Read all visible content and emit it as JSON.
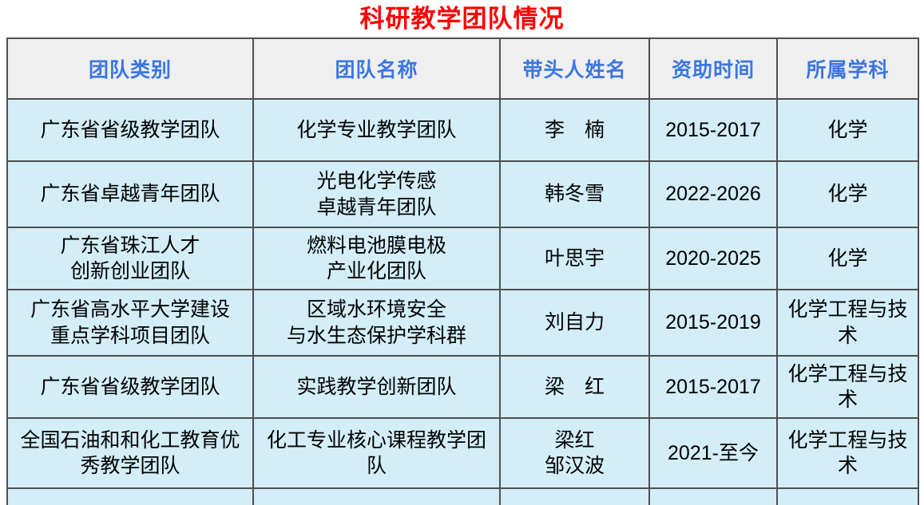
{
  "page": {
    "title": "科研教学团队情况"
  },
  "colors": {
    "title": "#ff0000",
    "header_text": "#3b76e3",
    "header_bg": "#efefef",
    "cell_bg": "#d3eef8",
    "border": "#4f4f4f",
    "body_text": "#000000"
  },
  "table": {
    "headers": [
      "团队类别",
      "团队名称",
      "带头人姓名",
      "资助时间",
      "所属学科"
    ],
    "rows": [
      [
        "广东省省级教学团队",
        "化学专业教学团队",
        "李　楠",
        "2015-2017",
        "化学"
      ],
      [
        "广东省卓越青年团队",
        "光电化学传感\n卓越青年团队",
        "韩冬雪",
        "2022-2026",
        "化学"
      ],
      [
        "广东省珠江人才\n创新创业团队",
        "燃料电池膜电极\n产业化团队",
        "叶思宇",
        "2020-2025",
        "化学"
      ],
      [
        "广东省高水平大学建设\n重点学科项目团队",
        "区域水环境安全\n与水生态保护学科群",
        "刘自力",
        "2015-2019",
        "化学工程与技术"
      ],
      [
        "广东省省级教学团队",
        "实践教学创新团队",
        "梁　红",
        "2015-2017",
        "化学工程与技术"
      ],
      [
        "全国石油和和化工教育优\n秀教学团队",
        "化工专业核心课程教学团\n队",
        "梁红\n邹汉波",
        "2021-至今",
        "化学工程与技术"
      ]
    ]
  }
}
